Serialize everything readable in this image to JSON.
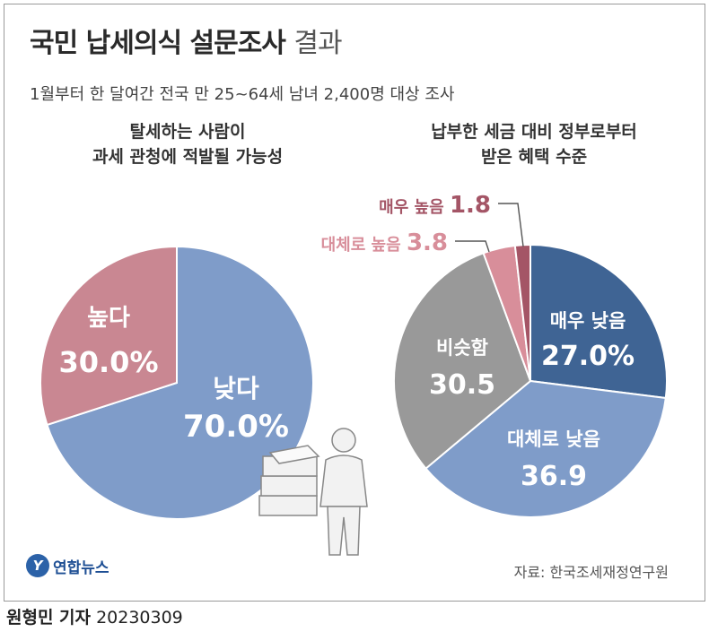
{
  "header": {
    "title_main": "국민 납세의식 설문조사",
    "title_suffix": "결과",
    "subtitle": "1월부터 한 달여간 전국 만 25~64세 남녀 2,400명 대상 조사"
  },
  "chart_data": [
    {
      "type": "pie",
      "title_lines": [
        "탈세하는 사람이",
        "과세 관청에 적발될 가능성"
      ],
      "slices": [
        {
          "label": "낮다",
          "value": 70.0,
          "value_text": "70.0%",
          "color": "#7f9cc9"
        },
        {
          "label": "높다",
          "value": 30.0,
          "value_text": "30.0%",
          "color": "#c98792"
        }
      ]
    },
    {
      "type": "pie",
      "title_lines": [
        "납부한 세금 대비 정부로부터",
        "받은 혜택 수준"
      ],
      "slices": [
        {
          "label": "매우 낮음",
          "value": 27.0,
          "value_text": "27.0%",
          "color": "#3f6494"
        },
        {
          "label": "대체로 낮음",
          "value": 36.9,
          "value_text": "36.9",
          "color": "#7f9cc9"
        },
        {
          "label": "비슷함",
          "value": 30.5,
          "value_text": "30.5",
          "color": "#999999"
        },
        {
          "label": "대체로 높음",
          "value": 3.8,
          "value_text": "3.8",
          "color": "#d88e9a"
        },
        {
          "label": "매우 높음",
          "value": 1.8,
          "value_text": "1.8",
          "color": "#a45566"
        }
      ]
    }
  ],
  "footer": {
    "logo_text": "연합뉴스",
    "source": "자료: 한국조세재정연구원",
    "reporter": "원형민 기자",
    "date": "20230309"
  }
}
